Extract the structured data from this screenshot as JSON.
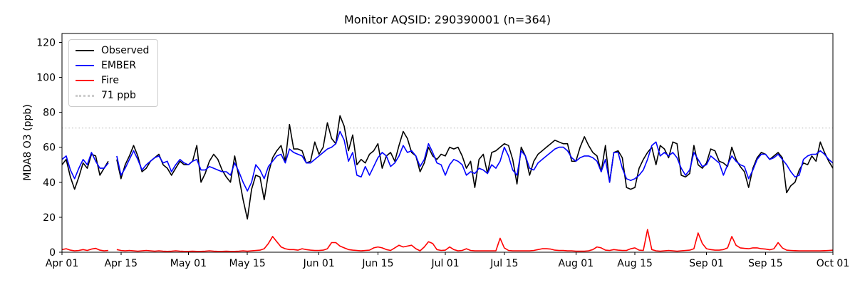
{
  "chart_data": {
    "type": "line",
    "title": "Monitor AQSID: 290390001 (n=364)",
    "ylabel": "MDA8 O3 (ppb)",
    "xlabel": "",
    "x_unit": "days since Apr 01",
    "ylim": [
      0,
      125
    ],
    "xlim_days": [
      0,
      183
    ],
    "grid": false,
    "legend_position": "upper left",
    "y_ticks": [
      0,
      20,
      40,
      60,
      80,
      100,
      120
    ],
    "x_ticks": {
      "days": [
        0,
        14,
        30,
        44,
        61,
        75,
        91,
        105,
        122,
        136,
        153,
        167,
        183
      ],
      "labels": [
        "Apr 01",
        "Apr 15",
        "May 01",
        "May 15",
        "Jun 01",
        "Jun 15",
        "Jul 01",
        "Jul 15",
        "Aug 01",
        "Aug 15",
        "Sep 01",
        "Sep 15",
        "Oct 01"
      ]
    },
    "threshold": {
      "value": 71,
      "label": "71 ppb",
      "color": "#cccccc",
      "style": "dotted"
    },
    "series": [
      {
        "name": "Observed",
        "color": "#000000",
        "values": [
          50,
          53,
          43,
          36,
          43,
          51,
          48,
          56,
          55,
          44,
          48,
          52,
          null,
          53,
          42,
          50,
          55,
          61,
          55,
          46,
          48,
          52,
          54,
          56,
          50,
          48,
          44,
          48,
          52,
          50,
          50,
          52,
          61,
          40,
          45,
          52,
          56,
          53,
          47,
          43,
          40,
          55,
          43,
          30,
          19,
          36,
          44,
          43,
          30,
          45,
          54,
          58,
          61,
          52,
          73,
          59,
          59,
          58,
          51,
          52,
          63,
          56,
          60,
          74,
          65,
          62,
          78,
          72,
          58,
          67,
          50,
          53,
          51,
          56,
          58,
          62,
          48,
          55,
          57,
          52,
          61,
          69,
          65,
          57,
          55,
          46,
          51,
          60,
          55,
          53,
          56,
          55,
          60,
          59,
          60,
          55,
          48,
          52,
          37,
          53,
          56,
          45,
          57,
          58,
          60,
          62,
          61,
          53,
          39,
          60,
          55,
          44,
          52,
          56,
          58,
          60,
          62,
          64,
          63,
          62,
          62,
          52,
          52,
          60,
          66,
          61,
          57,
          55,
          46,
          61,
          40,
          57,
          58,
          54,
          37,
          36,
          37,
          48,
          53,
          57,
          60,
          50,
          61,
          59,
          54,
          63,
          62,
          44,
          43,
          45,
          61,
          50,
          48,
          51,
          59,
          58,
          52,
          51,
          49,
          60,
          53,
          49,
          46,
          37,
          48,
          54,
          57,
          56,
          53,
          55,
          57,
          54,
          34,
          38,
          40,
          47,
          51,
          50,
          55,
          52,
          63,
          57,
          52,
          48
        ]
      },
      {
        "name": "EMBER",
        "color": "#0000ff",
        "values": [
          53,
          55,
          47,
          42,
          48,
          53,
          50,
          57,
          52,
          48,
          48,
          51,
          null,
          55,
          44,
          48,
          53,
          58,
          53,
          47,
          50,
          52,
          54,
          55,
          51,
          52,
          46,
          50,
          53,
          51,
          50,
          52,
          53,
          47,
          47,
          49,
          48,
          47,
          46,
          46,
          44,
          51,
          46,
          40,
          35,
          40,
          50,
          47,
          42,
          49,
          52,
          55,
          56,
          51,
          59,
          57,
          56,
          55,
          51,
          51,
          53,
          55,
          57,
          59,
          60,
          62,
          69,
          64,
          52,
          57,
          44,
          43,
          49,
          44,
          49,
          54,
          57,
          55,
          49,
          51,
          55,
          61,
          57,
          58,
          55,
          49,
          53,
          62,
          57,
          51,
          50,
          44,
          50,
          53,
          52,
          50,
          44,
          46,
          45,
          48,
          47,
          45,
          50,
          48,
          52,
          60,
          55,
          47,
          44,
          58,
          55,
          48,
          47,
          51,
          53,
          55,
          57,
          59,
          60,
          60,
          58,
          54,
          52,
          54,
          55,
          55,
          54,
          52,
          46,
          53,
          40,
          57,
          57,
          48,
          42,
          41,
          42,
          44,
          47,
          53,
          61,
          63,
          55,
          57,
          55,
          57,
          54,
          48,
          44,
          47,
          57,
          53,
          49,
          50,
          55,
          53,
          51,
          44,
          50,
          55,
          52,
          50,
          49,
          42,
          47,
          53,
          56,
          56,
          53,
          54,
          56,
          53,
          50,
          46,
          43,
          44,
          53,
          55,
          56,
          56,
          58,
          56,
          53,
          51
        ]
      },
      {
        "name": "Fire",
        "color": "#ff0000",
        "values": [
          1.5,
          2,
          1.2,
          0.8,
          1,
          1.5,
          1,
          1.8,
          2.2,
          1.2,
          0.8,
          1,
          null,
          1.5,
          1,
          0.8,
          1,
          0.8,
          0.6,
          0.8,
          1,
          0.8,
          0.6,
          0.8,
          0.6,
          0.5,
          0.6,
          0.8,
          0.6,
          0.5,
          0.5,
          0.6,
          0.5,
          0.5,
          0.6,
          0.8,
          0.6,
          0.5,
          0.5,
          0.6,
          0.5,
          0.5,
          0.6,
          0.8,
          0.6,
          0.8,
          1,
          1.2,
          2,
          5,
          9,
          6,
          3,
          2,
          1.5,
          1.5,
          1.2,
          2,
          1.5,
          1.2,
          1,
          1,
          1.2,
          2,
          5.5,
          5.5,
          3.5,
          2.5,
          1.5,
          1.2,
          1,
          0.8,
          1,
          1.2,
          2.5,
          3,
          2.5,
          1.5,
          1,
          2.5,
          4,
          3,
          3.5,
          4,
          2,
          0.8,
          3,
          6,
          5,
          1.5,
          1,
          1.2,
          3,
          1.5,
          0.8,
          1,
          2,
          1,
          0.8,
          0.8,
          0.8,
          0.8,
          0.8,
          0.8,
          8,
          2.5,
          1,
          0.8,
          0.8,
          0.8,
          0.8,
          0.8,
          1,
          1.5,
          2,
          2,
          1.8,
          1.2,
          1,
          1,
          0.8,
          0.8,
          0.6,
          0.6,
          0.6,
          0.8,
          1.5,
          3,
          2.5,
          1.2,
          1,
          1.5,
          1.2,
          1,
          1,
          2,
          2.5,
          1.2,
          1,
          13,
          1.5,
          0.8,
          0.6,
          0.8,
          1,
          0.8,
          0.6,
          0.8,
          1,
          1.2,
          2,
          11,
          5,
          2,
          1.5,
          1.2,
          1.2,
          1.5,
          2.5,
          9,
          4,
          2.5,
          2.2,
          2,
          2.5,
          2.5,
          2,
          1.8,
          1.4,
          2,
          5.5,
          2.5,
          1.2,
          1,
          0.9,
          0.8,
          0.8,
          0.8,
          0.8,
          0.8,
          0.8,
          0.9,
          1,
          1.2
        ]
      }
    ]
  },
  "legend": {
    "items": [
      {
        "label": "Observed"
      },
      {
        "label": "EMBER"
      },
      {
        "label": "Fire"
      },
      {
        "label": "71 ppb"
      }
    ]
  }
}
